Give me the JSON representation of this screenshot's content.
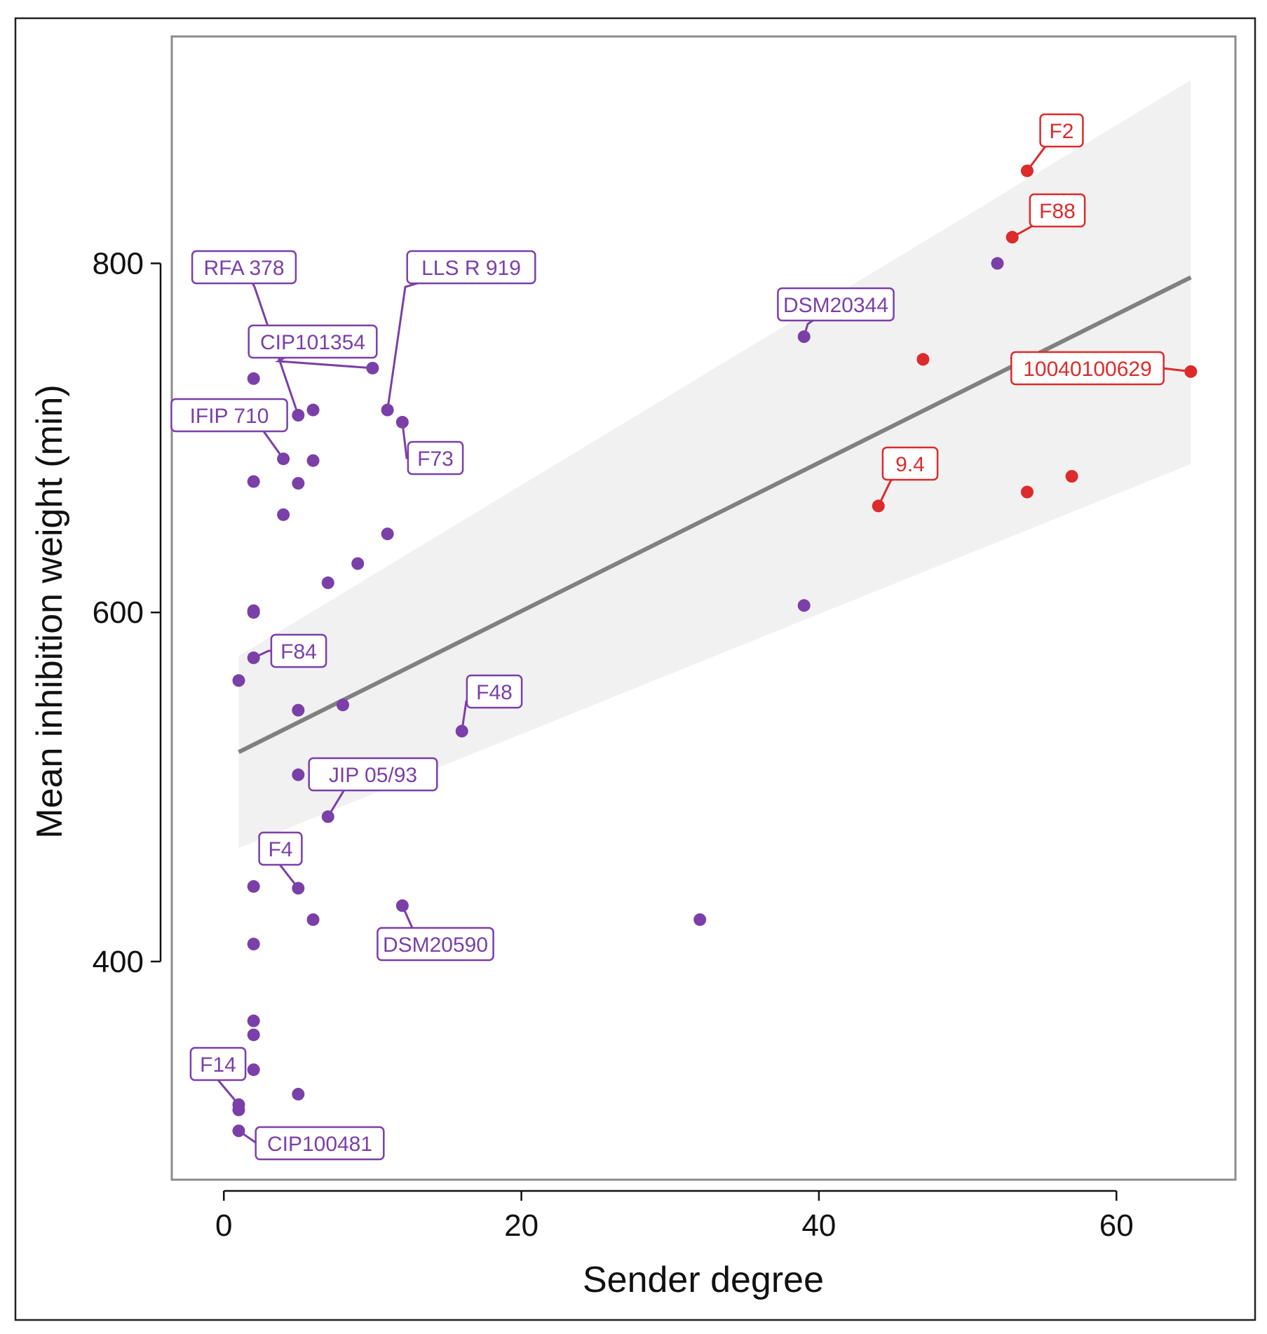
{
  "chart_data": {
    "type": "scatter",
    "title": "",
    "xlabel": "Sender degree",
    "ylabel": "Mean inhibition weight (min)",
    "xlim": [
      -3.5,
      68
    ],
    "ylim": [
      275,
      930
    ],
    "xticks": [
      0,
      20,
      40,
      60
    ],
    "yticks": [
      400,
      600,
      800
    ],
    "grid": false,
    "legend": "none",
    "colors": {
      "purple": "#7b3fa8",
      "red": "#dd2a2a",
      "trend": "#808080",
      "band": "#efefef",
      "frame": "#8c8c8c"
    },
    "trend": {
      "x0": 1,
      "y0": 520,
      "x1": 65,
      "y1": 792
    },
    "confidence_band": {
      "upper": [
        [
          1,
          575
        ],
        [
          65,
          905
        ]
      ],
      "lower": [
        [
          1,
          465
        ],
        [
          65,
          685
        ]
      ]
    },
    "series": [
      {
        "name": "purple",
        "color": "#7b3fa8",
        "points": [
          [
            2,
            734
          ],
          [
            5,
            713
          ],
          [
            6,
            716
          ],
          [
            10,
            740
          ],
          [
            11,
            716
          ],
          [
            12,
            709
          ],
          [
            4,
            688
          ],
          [
            6,
            687
          ],
          [
            2,
            675
          ],
          [
            5,
            674
          ],
          [
            4,
            656
          ],
          [
            11,
            645
          ],
          [
            9,
            628
          ],
          [
            7,
            617
          ],
          [
            2,
            601
          ],
          [
            2,
            600
          ],
          [
            2,
            574
          ],
          [
            1,
            561
          ],
          [
            5,
            544
          ],
          [
            8,
            547
          ],
          [
            16,
            532
          ],
          [
            5,
            507
          ],
          [
            7,
            483
          ],
          [
            5,
            442
          ],
          [
            2,
            443
          ],
          [
            12,
            432
          ],
          [
            6,
            424
          ],
          [
            32,
            424
          ],
          [
            2,
            410
          ],
          [
            2,
            366
          ],
          [
            2,
            358
          ],
          [
            2,
            338
          ],
          [
            5,
            324
          ],
          [
            1,
            318
          ],
          [
            1,
            315
          ],
          [
            1,
            303
          ],
          [
            39,
            758
          ],
          [
            39,
            604
          ],
          [
            52,
            800
          ]
        ]
      },
      {
        "name": "red",
        "color": "#dd2a2a",
        "points": [
          [
            54,
            853
          ],
          [
            53,
            815
          ],
          [
            47,
            745
          ],
          [
            65,
            738
          ],
          [
            44,
            661
          ],
          [
            54,
            669
          ],
          [
            57,
            678
          ]
        ]
      }
    ],
    "annotations": [
      {
        "text": "RFA 378",
        "point": [
          5,
          713
        ],
        "color": "purple"
      },
      {
        "text": "LLS R 919",
        "point": [
          11,
          716
        ],
        "color": "purple"
      },
      {
        "text": "CIP101354",
        "point": [
          10,
          740
        ],
        "color": "purple"
      },
      {
        "text": "IFIP 710",
        "point": [
          4,
          688
        ],
        "color": "purple"
      },
      {
        "text": "F73",
        "point": [
          12,
          709
        ],
        "color": "purple"
      },
      {
        "text": "F84",
        "point": [
          2,
          574
        ],
        "color": "purple"
      },
      {
        "text": "F48",
        "point": [
          16,
          532
        ],
        "color": "purple"
      },
      {
        "text": "JIP 05/93",
        "point": [
          7,
          483
        ],
        "color": "purple"
      },
      {
        "text": "F4",
        "point": [
          5,
          442
        ],
        "color": "purple"
      },
      {
        "text": "DSM20590",
        "point": [
          12,
          432
        ],
        "color": "purple"
      },
      {
        "text": "F14",
        "point": [
          1,
          318
        ],
        "color": "purple"
      },
      {
        "text": "CIP100481",
        "point": [
          1,
          303
        ],
        "color": "purple"
      },
      {
        "text": "DSM20344",
        "point": [
          39,
          758
        ],
        "color": "purple"
      },
      {
        "text": "F2",
        "point": [
          54,
          853
        ],
        "color": "red"
      },
      {
        "text": "F88",
        "point": [
          53,
          815
        ],
        "color": "red"
      },
      {
        "text": "10040100629",
        "point": [
          65,
          738
        ],
        "color": "red"
      },
      {
        "text": "9.4",
        "point": [
          44,
          661
        ],
        "color": "red"
      }
    ]
  }
}
